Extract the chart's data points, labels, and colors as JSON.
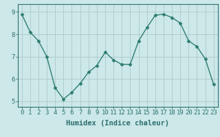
{
  "x": [
    0,
    1,
    2,
    3,
    4,
    5,
    6,
    7,
    8,
    9,
    10,
    11,
    12,
    13,
    14,
    15,
    16,
    17,
    18,
    19,
    20,
    21,
    22,
    23
  ],
  "y": [
    8.9,
    8.1,
    7.7,
    7.0,
    5.6,
    5.1,
    5.4,
    5.8,
    6.3,
    6.6,
    7.2,
    6.85,
    6.65,
    6.65,
    7.7,
    8.3,
    8.85,
    8.9,
    8.75,
    8.5,
    7.7,
    7.45,
    6.9,
    5.75
  ],
  "line_color": "#2d7d6e",
  "marker": "D",
  "marker_size": 2.5,
  "bg_color": "#cce8e8",
  "grid_color": "#b0cccc",
  "xlabel": "Humidex (Indice chaleur)",
  "xlim": [
    -0.5,
    23.5
  ],
  "ylim": [
    4.75,
    9.35
  ],
  "yticks": [
    5,
    6,
    7,
    8,
    9
  ],
  "xticks": [
    0,
    1,
    2,
    3,
    4,
    5,
    6,
    7,
    8,
    9,
    10,
    11,
    12,
    13,
    14,
    15,
    16,
    17,
    18,
    19,
    20,
    21,
    22,
    23
  ],
  "xlabel_fontsize": 7.5,
  "tick_fontsize": 6.5,
  "axis_color": "#2d6e6e",
  "spine_color": "#2d6e6e"
}
